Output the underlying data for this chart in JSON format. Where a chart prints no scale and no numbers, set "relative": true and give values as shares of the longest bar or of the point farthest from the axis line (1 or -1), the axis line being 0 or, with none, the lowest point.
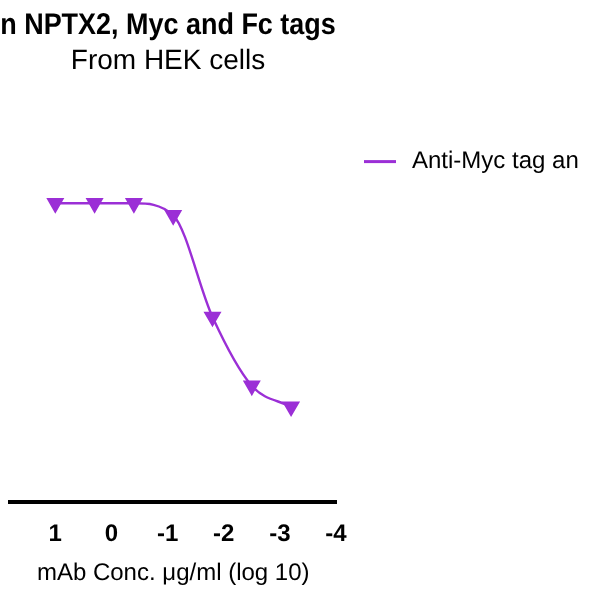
{
  "chart_data": {
    "type": "line",
    "title": "n NPTX2, Myc and Fc tags",
    "subtitle": "From HEK cells",
    "xlabel": "mAb Conc. μg/ml (log 10)",
    "relative": true,
    "xlim": [
      1.8,
      -4
    ],
    "xticks": [
      1,
      0,
      -1,
      -2,
      -3,
      -4
    ],
    "x": [
      1.0,
      0.3,
      -0.4,
      -1.1,
      -1.8,
      -2.5,
      -3.2
    ],
    "series": [
      {
        "name": "Anti-Myc tag an",
        "color": "#9b2fd6",
        "values": [
          1,
          1,
          1,
          0.96,
          0.62,
          0.39,
          0.32
        ]
      }
    ],
    "marker": "triangle",
    "legend": "top right",
    "grid": false
  }
}
